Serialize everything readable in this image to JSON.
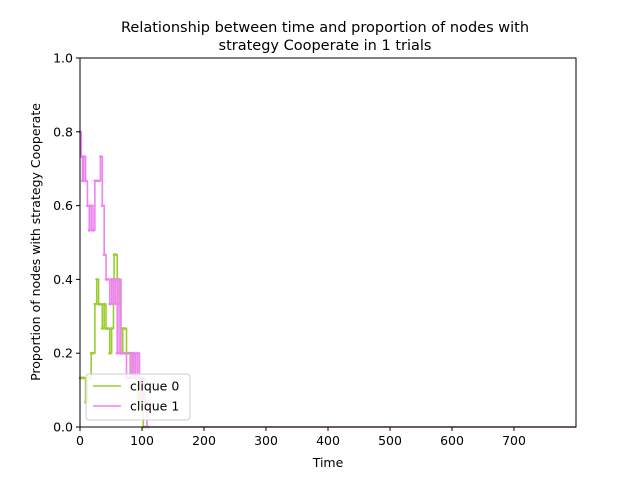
{
  "chart_data": {
    "type": "line",
    "title_lines": [
      "Relationship between time and proportion of nodes with",
      "strategy Cooperate in 1 trials"
    ],
    "xlabel": "Time",
    "ylabel": "Proportion of nodes with strategy Cooperate",
    "xlim": [
      0,
      800
    ],
    "ylim": [
      0,
      1.0
    ],
    "xticks": [
      0,
      100,
      200,
      300,
      400,
      500,
      600,
      700
    ],
    "yticks": [
      0.0,
      0.2,
      0.4,
      0.6,
      0.8,
      1.0
    ],
    "legend_position": "lower-left",
    "series": [
      {
        "name": "clique 0",
        "color": "#9acd32",
        "x": [
          0,
          3,
          6,
          9,
          12,
          15,
          18,
          21,
          24,
          27,
          30,
          33,
          36,
          39,
          42,
          45,
          48,
          51,
          54,
          55,
          57,
          60,
          63,
          66,
          69,
          72,
          75,
          78,
          81,
          84,
          87,
          90,
          93,
          96,
          99,
          102,
          105,
          110,
          120,
          800
        ],
        "y": [
          0.133,
          0.133,
          0.133,
          0.067,
          0.133,
          0.133,
          0.2,
          0.2,
          0.333,
          0.4,
          0.333,
          0.333,
          0.267,
          0.333,
          0.267,
          0.267,
          0.2,
          0.267,
          0.4,
          0.467,
          0.467,
          0.333,
          0.4,
          0.2,
          0.267,
          0.267,
          0.2,
          0.2,
          0.133,
          0.2,
          0.133,
          0.133,
          0.067,
          0.133,
          0.067,
          0.0,
          0.0,
          0.0,
          0.0,
          0.0
        ]
      },
      {
        "name": "clique 1",
        "color": "#ee82ee",
        "x": [
          0,
          2,
          4,
          6,
          9,
          12,
          15,
          18,
          21,
          24,
          27,
          30,
          33,
          36,
          39,
          42,
          45,
          48,
          51,
          54,
          57,
          60,
          63,
          66,
          69,
          72,
          75,
          78,
          81,
          84,
          87,
          90,
          93,
          96,
          99,
          102,
          105,
          108,
          110,
          115,
          125,
          800
        ],
        "y": [
          0.8,
          0.733,
          0.667,
          0.733,
          0.667,
          0.6,
          0.533,
          0.6,
          0.533,
          0.667,
          0.667,
          0.667,
          0.733,
          0.6,
          0.467,
          0.4,
          0.4,
          0.333,
          0.4,
          0.333,
          0.4,
          0.2,
          0.4,
          0.2,
          0.2,
          0.2,
          0.133,
          0.133,
          0.2,
          0.133,
          0.2,
          0.133,
          0.2,
          0.133,
          0.067,
          0.133,
          0.067,
          0.0,
          0.0,
          0.0,
          0.0,
          0.0
        ]
      }
    ]
  }
}
